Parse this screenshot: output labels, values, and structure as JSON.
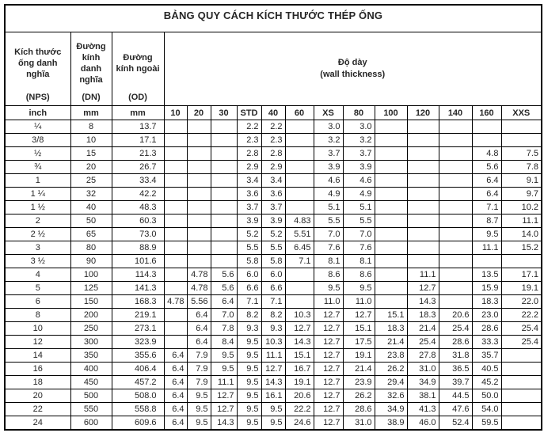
{
  "title": "BẢNG QUY CÁCH KÍCH THƯỚC THÉP ỐNG",
  "header": {
    "nps_label": "Kích thước ống danh nghĩa",
    "nps_abbr": "(NPS)",
    "nps_unit": "inch",
    "dn_label": "Đường kính danh nghĩa",
    "dn_abbr": "(DN)",
    "dn_unit": "mm",
    "od_label": "Đường kính ngoài",
    "od_abbr": "(OD)",
    "od_unit": "mm",
    "thickness_label": "Độ dày",
    "thickness_sublabel": "(wall thickness)",
    "schedules": [
      "10",
      "20",
      "30",
      "STD",
      "40",
      "60",
      "XS",
      "80",
      "100",
      "120",
      "140",
      "160",
      "XXS"
    ]
  },
  "rows": [
    {
      "nps": "¼",
      "dn": "8",
      "od": "13.7",
      "t": [
        "",
        "",
        "",
        "2.2",
        "2.2",
        "",
        "3.0",
        "3.0",
        "",
        "",
        "",
        "",
        ""
      ]
    },
    {
      "nps": "3/8",
      "dn": "10",
      "od": "17.1",
      "t": [
        "",
        "",
        "",
        "2.3",
        "2.3",
        "",
        "3.2",
        "3.2",
        "",
        "",
        "",
        "",
        ""
      ]
    },
    {
      "nps": "½",
      "dn": "15",
      "od": "21.3",
      "t": [
        "",
        "",
        "",
        "2.8",
        "2.8",
        "",
        "3.7",
        "3.7",
        "",
        "",
        "",
        "4.8",
        "7.5"
      ]
    },
    {
      "nps": "¾",
      "dn": "20",
      "od": "26.7",
      "t": [
        "",
        "",
        "",
        "2.9",
        "2.9",
        "",
        "3.9",
        "3.9",
        "",
        "",
        "",
        "5.6",
        "7.8"
      ]
    },
    {
      "nps": "1",
      "dn": "25",
      "od": "33.4",
      "t": [
        "",
        "",
        "",
        "3.4",
        "3.4",
        "",
        "4.6",
        "4.6",
        "",
        "",
        "",
        "6.4",
        "9.1"
      ]
    },
    {
      "nps": "1 ¼",
      "dn": "32",
      "od": "42.2",
      "t": [
        "",
        "",
        "",
        "3.6",
        "3.6",
        "",
        "4.9",
        "4.9",
        "",
        "",
        "",
        "6.4",
        "9.7"
      ]
    },
    {
      "nps": "1 ½",
      "dn": "40",
      "od": "48.3",
      "t": [
        "",
        "",
        "",
        "3.7",
        "3.7",
        "",
        "5.1",
        "5.1",
        "",
        "",
        "",
        "7.1",
        "10.2"
      ]
    },
    {
      "nps": "2",
      "dn": "50",
      "od": "60.3",
      "t": [
        "",
        "",
        "",
        "3.9",
        "3.9",
        "4.83",
        "5.5",
        "5.5",
        "",
        "",
        "",
        "8.7",
        "11.1"
      ]
    },
    {
      "nps": "2 ½",
      "dn": "65",
      "od": "73.0",
      "t": [
        "",
        "",
        "",
        "5.2",
        "5.2",
        "5.51",
        "7.0",
        "7.0",
        "",
        "",
        "",
        "9.5",
        "14.0"
      ]
    },
    {
      "nps": "3",
      "dn": "80",
      "od": "88.9",
      "t": [
        "",
        "",
        "",
        "5.5",
        "5.5",
        "6.45",
        "7.6",
        "7.6",
        "",
        "",
        "",
        "11.1",
        "15.2"
      ]
    },
    {
      "nps": "3 ½",
      "dn": "90",
      "od": "101.6",
      "t": [
        "",
        "",
        "",
        "5.8",
        "5.8",
        "7.1",
        "8.1",
        "8.1",
        "",
        "",
        "",
        "",
        ""
      ]
    },
    {
      "nps": "4",
      "dn": "100",
      "od": "114.3",
      "t": [
        "",
        "4.78",
        "5.6",
        "6.0",
        "6.0",
        "",
        "8.6",
        "8.6",
        "",
        "11.1",
        "",
        "13.5",
        "17.1"
      ]
    },
    {
      "nps": "5",
      "dn": "125",
      "od": "141.3",
      "t": [
        "",
        "4.78",
        "5.6",
        "6.6",
        "6.6",
        "",
        "9.5",
        "9.5",
        "",
        "12.7",
        "",
        "15.9",
        "19.1"
      ]
    },
    {
      "nps": "6",
      "dn": "150",
      "od": "168.3",
      "t": [
        "4.78",
        "5.56",
        "6.4",
        "7.1",
        "7.1",
        "",
        "11.0",
        "11.0",
        "",
        "14.3",
        "",
        "18.3",
        "22.0"
      ]
    },
    {
      "nps": "8",
      "dn": "200",
      "od": "219.1",
      "t": [
        "",
        "6.4",
        "7.0",
        "8.2",
        "8.2",
        "10.3",
        "12.7",
        "12.7",
        "15.1",
        "18.3",
        "20.6",
        "23.0",
        "22.2"
      ]
    },
    {
      "nps": "10",
      "dn": "250",
      "od": "273.1",
      "t": [
        "",
        "6.4",
        "7.8",
        "9.3",
        "9.3",
        "12.7",
        "12.7",
        "15.1",
        "18.3",
        "21.4",
        "25.4",
        "28.6",
        "25.4"
      ]
    },
    {
      "nps": "12",
      "dn": "300",
      "od": "323.9",
      "t": [
        "",
        "6.4",
        "8.4",
        "9.5",
        "10.3",
        "14.3",
        "12.7",
        "17.5",
        "21.4",
        "25.4",
        "28.6",
        "33.3",
        "25.4"
      ]
    },
    {
      "nps": "14",
      "dn": "350",
      "od": "355.6",
      "t": [
        "6.4",
        "7.9",
        "9.5",
        "9.5",
        "11.1",
        "15.1",
        "12.7",
        "19.1",
        "23.8",
        "27.8",
        "31.8",
        "35.7",
        ""
      ]
    },
    {
      "nps": "16",
      "dn": "400",
      "od": "406.4",
      "t": [
        "6.4",
        "7.9",
        "9.5",
        "9.5",
        "12.7",
        "16.7",
        "12.7",
        "21.4",
        "26.2",
        "31.0",
        "36.5",
        "40.5",
        ""
      ]
    },
    {
      "nps": "18",
      "dn": "450",
      "od": "457.2",
      "t": [
        "6.4",
        "7.9",
        "11.1",
        "9.5",
        "14.3",
        "19.1",
        "12.7",
        "23.9",
        "29.4",
        "34.9",
        "39.7",
        "45.2",
        ""
      ]
    },
    {
      "nps": "20",
      "dn": "500",
      "od": "508.0",
      "t": [
        "6.4",
        "9.5",
        "12.7",
        "9.5",
        "16.1",
        "20.6",
        "12.7",
        "26.2",
        "32.6",
        "38.1",
        "44.5",
        "50.0",
        ""
      ]
    },
    {
      "nps": "22",
      "dn": "550",
      "od": "558.8",
      "t": [
        "6.4",
        "9.5",
        "12.7",
        "9.5",
        "9.5",
        "22.2",
        "12.7",
        "28.6",
        "34.9",
        "41.3",
        "47.6",
        "54.0",
        ""
      ]
    },
    {
      "nps": "24",
      "dn": "600",
      "od": "609.6",
      "t": [
        "6.4",
        "9.5",
        "14.3",
        "9.5",
        "9.5",
        "24.6",
        "12.7",
        "31.0",
        "38.9",
        "46.0",
        "52.4",
        "59.5",
        ""
      ]
    }
  ],
  "colors": {
    "border": "#000000",
    "text": "#262626",
    "background": "#ffffff"
  }
}
